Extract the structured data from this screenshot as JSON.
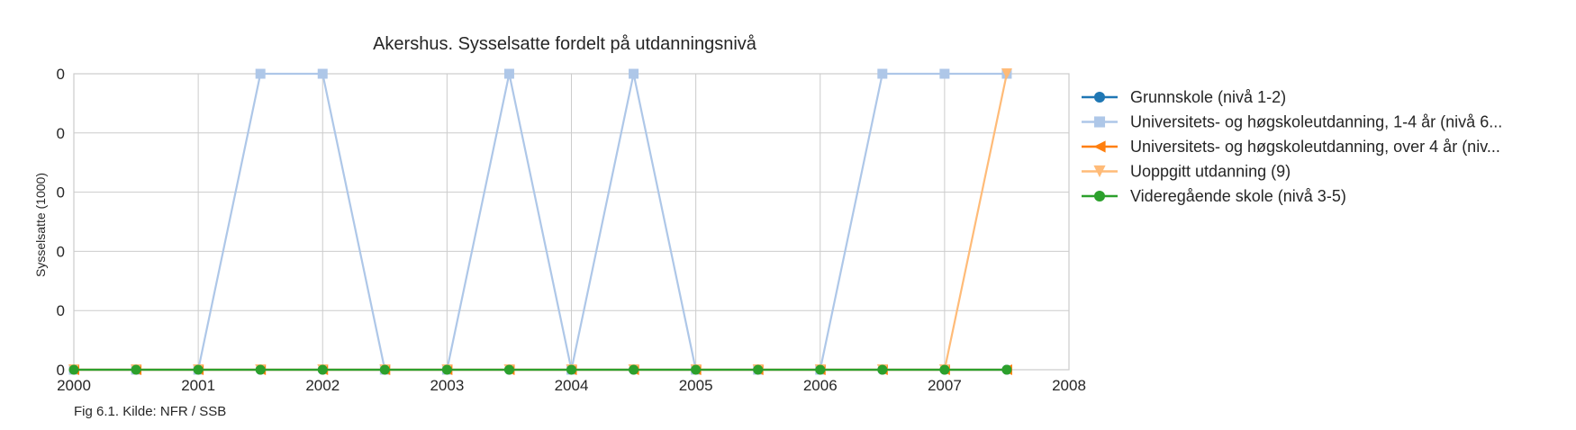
{
  "chart_data": {
    "type": "line",
    "title": "Akershus. Sysselsatte fordelt på utdanningsnivå",
    "xlabel": "",
    "ylabel": "Sysselsatte (1000)",
    "xlim": [
      2000,
      2008
    ],
    "ylim": [
      0,
      1
    ],
    "x_ticks": [
      "2000",
      "2001",
      "2002",
      "2003",
      "2004",
      "2005",
      "2006",
      "2007",
      "2008"
    ],
    "y_ticks": [
      "0",
      "0",
      "0",
      "0",
      "0",
      "0"
    ],
    "grid": true,
    "legend_position": "outside-right-top",
    "x": [
      2000,
      2000.5,
      2001,
      2001.5,
      2002,
      2002.5,
      2003,
      2003.5,
      2004,
      2004.5,
      2005,
      2005.5,
      2006,
      2006.5,
      2007,
      2007.5
    ],
    "series": [
      {
        "name": "Grunnskole (nivå 1-2)",
        "color": "#1f77b4",
        "marker": "circle",
        "values": [
          0,
          0,
          0,
          0,
          0,
          0,
          0,
          0,
          0,
          0,
          0,
          0,
          0,
          0,
          0,
          0
        ]
      },
      {
        "name": "Universitets- og høgskoleutdanning, 1-4 år (nivå 6...",
        "color": "#aec7e8",
        "marker": "square",
        "values": [
          0,
          0,
          0,
          1,
          1,
          0,
          0,
          1,
          0,
          1,
          0,
          0,
          0,
          1,
          1,
          1
        ]
      },
      {
        "name": "Universitets- og høgskoleutdanning, over 4 år (niv...",
        "color": "#ff7f0e",
        "marker": "triangle-left",
        "values": [
          0,
          0,
          0,
          0,
          0,
          0,
          0,
          0,
          0,
          0,
          0,
          0,
          0,
          0,
          0,
          0
        ]
      },
      {
        "name": "Uoppgitt utdanning (9)",
        "color": "#ffbb78",
        "marker": "triangle-down",
        "values": [
          0,
          0,
          0,
          0,
          0,
          0,
          0,
          0,
          0,
          0,
          0,
          0,
          0,
          0,
          0,
          1
        ]
      },
      {
        "name": "Videregående skole (nivå 3-5)",
        "color": "#2ca02c",
        "marker": "circle",
        "values": [
          0,
          0,
          0,
          0,
          0,
          0,
          0,
          0,
          0,
          0,
          0,
          0,
          0,
          0,
          0,
          0
        ]
      }
    ],
    "caption": "Fig 6.1. Kilde: NFR / SSB"
  }
}
